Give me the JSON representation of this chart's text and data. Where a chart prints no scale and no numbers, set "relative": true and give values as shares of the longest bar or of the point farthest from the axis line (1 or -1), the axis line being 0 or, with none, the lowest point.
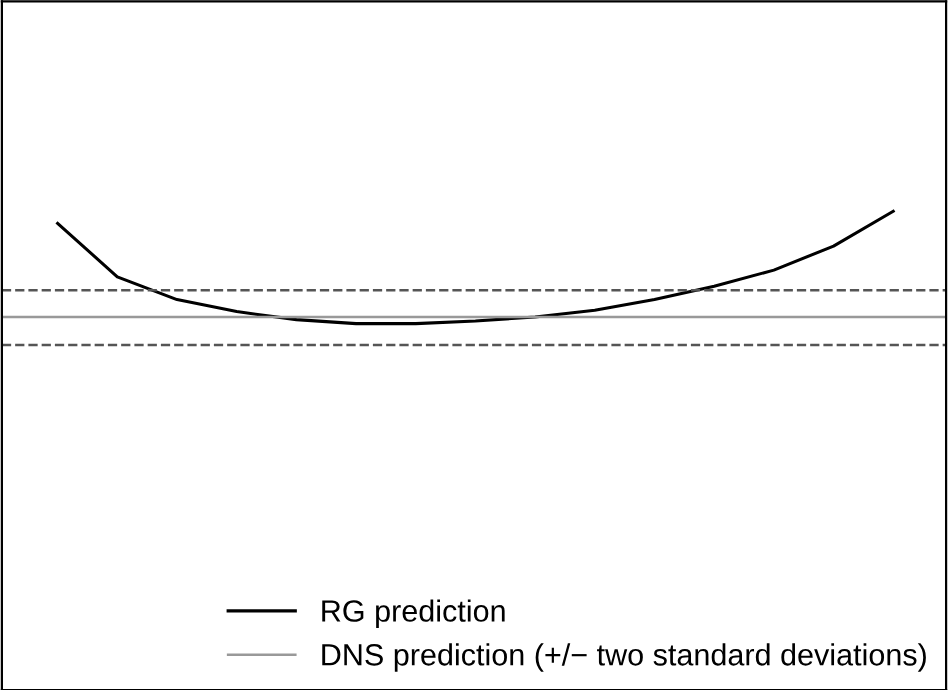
{
  "chart_data": {
    "type": "line",
    "relative": true,
    "categories": [
      null,
      null,
      null,
      null,
      null,
      null,
      null,
      null,
      null,
      null,
      null,
      null,
      null,
      null,
      null
    ],
    "series": [
      {
        "name": "RG prediction",
        "color": "#000000",
        "values": [
          0.91,
          0.51,
          0.34,
          0.25,
          0.19,
          0.16,
          0.16,
          0.18,
          0.21,
          0.26,
          0.34,
          0.44,
          0.56,
          0.74,
          1.0
        ]
      }
    ],
    "ref_lines": [
      {
        "axis": "y",
        "value": 0.21,
        "label": "DNS prediction (+/− two standard deviations)",
        "color": "#999999",
        "line_style": "solid"
      },
      {
        "axis": "y",
        "value": 0.41,
        "color": "#555555",
        "line_style": "dashed"
      },
      {
        "axis": "y",
        "value": 0.0,
        "color": "#555555",
        "line_style": "dashed"
      }
    ],
    "legend": "bottom"
  }
}
